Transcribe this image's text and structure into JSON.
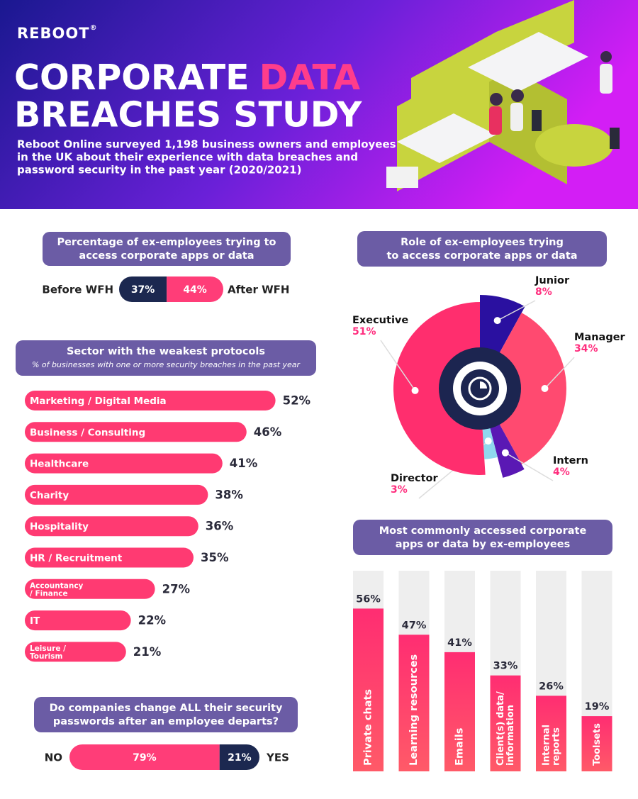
{
  "header": {
    "logo": "REBOOT",
    "logo_mark": "®",
    "title_line1": "CORPORATE",
    "title_highlight": "DATA",
    "title_line2": "BREACHES STUDY",
    "subtitle": [
      "Reboot Online surveyed 1,198 business owners and employees",
      "in the UK about their experience with data breaches and",
      "password security in the past year (2020/2021)"
    ]
  },
  "chart_data": [
    {
      "type": "split-bar",
      "title": [
        "Percentage of ex-employees trying to",
        "access corporate apps or data"
      ],
      "categories": [
        "Before WFH",
        "After WFH"
      ],
      "values": [
        37,
        44
      ],
      "value_labels": [
        "37%",
        "44%"
      ],
      "colors": [
        "#1c2850",
        "#ff3d78"
      ]
    },
    {
      "type": "hbar",
      "title": [
        "Sector with the weakest protocols"
      ],
      "subtitle": "% of businesses with one or more security breaches in the past year",
      "categories": [
        "Marketing / Digital Media",
        "Business / Consulting",
        "Healthcare",
        "Charity",
        "Hospitality",
        "HR / Recruitment",
        "Accountancy / Finance",
        "IT",
        "Leisure / Tourism"
      ],
      "values": [
        52,
        46,
        41,
        38,
        36,
        35,
        27,
        22,
        21
      ],
      "value_labels": [
        "52%",
        "46%",
        "41%",
        "38%",
        "36%",
        "35%",
        "27%",
        "22%",
        "21%"
      ],
      "color": "#ff3a72"
    },
    {
      "type": "pie",
      "title": [
        "Role of ex-employees trying",
        "to access corporate apps or data"
      ],
      "categories": [
        "Junior",
        "Manager",
        "Intern",
        "Director",
        "Executive"
      ],
      "values": [
        8,
        34,
        4,
        3,
        51
      ],
      "value_labels": [
        "8%",
        "34%",
        "4%",
        "3%",
        "51%"
      ],
      "colors": [
        "#2a10a0",
        "#ff4a70",
        "#5a18b4",
        "#8fd8ee",
        "#ff2e6e"
      ]
    },
    {
      "type": "bar",
      "title": [
        "Most commonly accessed corporate",
        "apps or data by ex-employees"
      ],
      "categories": [
        "Private chats",
        "Learning resources",
        "Emails",
        "Client(s) data/ information",
        "Internal reports",
        "Toolsets"
      ],
      "values": [
        56,
        47,
        41,
        33,
        26,
        19
      ],
      "value_labels": [
        "56%",
        "47%",
        "41%",
        "33%",
        "26%",
        "19%"
      ],
      "color": "#ff3a70"
    },
    {
      "type": "split-bar",
      "title": [
        "Do companies change ALL their security",
        "passwords after an employee departs?"
      ],
      "categories": [
        "NO",
        "YES"
      ],
      "values": [
        79,
        21
      ],
      "value_labels": [
        "79%",
        "21%"
      ],
      "colors": [
        "#ff3d78",
        "#1c2850"
      ]
    }
  ]
}
